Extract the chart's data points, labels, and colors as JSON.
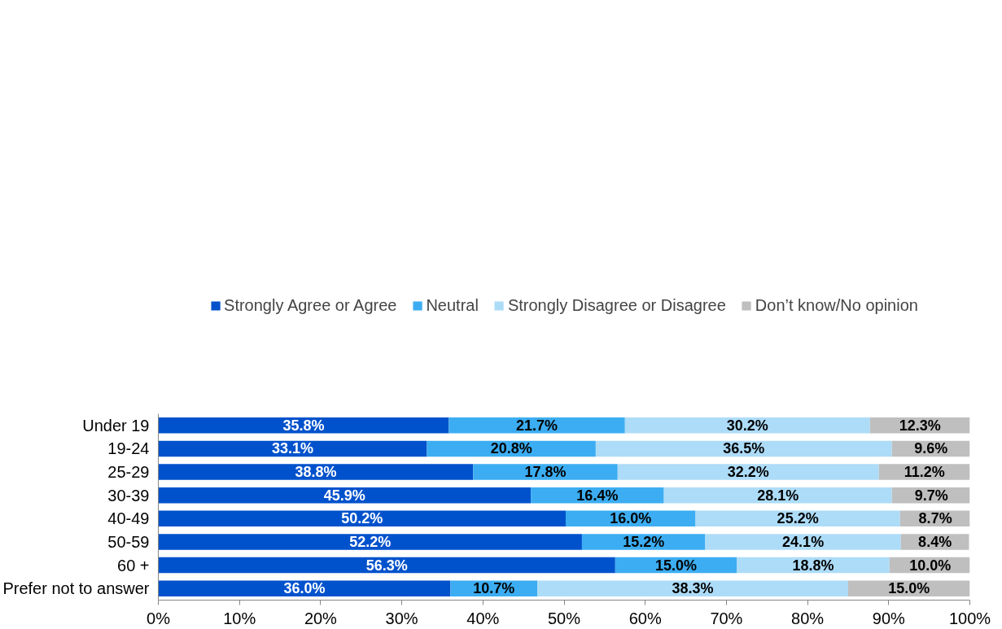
{
  "chart_data": {
    "type": "bar",
    "orientation": "horizontal",
    "stacked": true,
    "categories": [
      "Under 19",
      "19-24",
      "25-29",
      "30-39",
      "40-49",
      "50-59",
      "60 +",
      "Prefer not to answer"
    ],
    "series": [
      {
        "name": "Strongly Agree or Agree",
        "color": "#0052cc",
        "values": [
          35.8,
          33.1,
          38.8,
          45.9,
          50.2,
          52.2,
          56.3,
          36.0
        ],
        "value_labels": [
          "35.8%",
          "33.1%",
          "38.8%",
          "45.9%",
          "50.2%",
          "52.2%",
          "56.3%",
          "36.0%"
        ]
      },
      {
        "name": "Neutral",
        "color": "#3cadf2",
        "values": [
          21.7,
          20.8,
          17.8,
          16.4,
          16.0,
          15.2,
          15.0,
          10.7
        ],
        "value_labels": [
          "21.7%",
          "20.8%",
          "17.8%",
          "16.4%",
          "16.0%",
          "15.2%",
          "15.0%",
          "10.7%"
        ]
      },
      {
        "name": "Strongly Disagree or Disagree",
        "color": "#addcf8",
        "values": [
          30.2,
          36.5,
          32.2,
          28.1,
          25.2,
          24.1,
          18.8,
          38.3
        ],
        "value_labels": [
          "30.2%",
          "36.5%",
          "32.2%",
          "28.1%",
          "25.2%",
          "24.1%",
          "18.8%",
          "38.3%"
        ]
      },
      {
        "name": "Don’t know/No opinion",
        "color": "#bfbfbf",
        "values": [
          12.3,
          9.6,
          11.2,
          9.7,
          8.7,
          8.4,
          10.0,
          15.0
        ],
        "value_labels": [
          "12.3%",
          "9.6%",
          "11.2%",
          "9.7%",
          "8.7%",
          "8.4%",
          "10.0%",
          "15.0%"
        ]
      }
    ],
    "xlim": [
      0,
      100
    ],
    "xticks": [
      {
        "value": 0,
        "label": "0%"
      },
      {
        "value": 10,
        "label": "10%"
      },
      {
        "value": 20,
        "label": "20%"
      },
      {
        "value": 30,
        "label": "30%"
      },
      {
        "value": 40,
        "label": "40%"
      },
      {
        "value": 50,
        "label": "50%"
      },
      {
        "value": 60,
        "label": "60%"
      },
      {
        "value": 70,
        "label": "70%"
      },
      {
        "value": 80,
        "label": "80%"
      },
      {
        "value": 90,
        "label": "90%"
      },
      {
        "value": 100,
        "label": "100%"
      }
    ],
    "grid": false,
    "legend": "top"
  }
}
